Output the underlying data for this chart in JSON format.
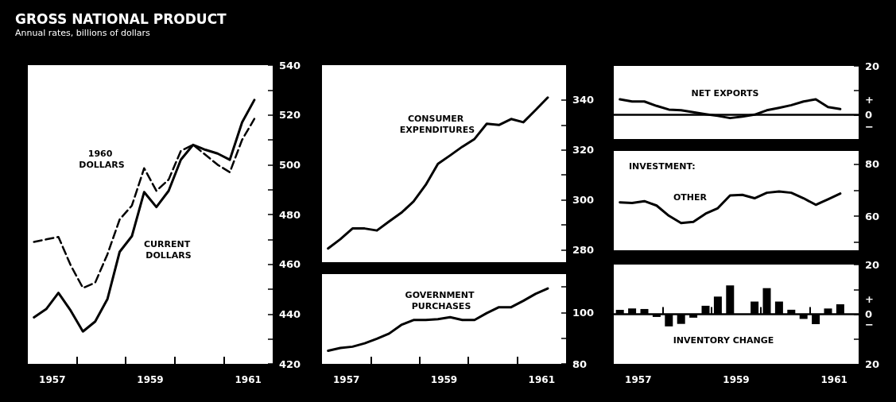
{
  "chart_data": [
    {
      "type": "line",
      "title": "GROSS NATIONAL PRODUCT",
      "subtitle": "Annual rates, billions of dollars",
      "x": [
        1957.125,
        1957.375,
        1957.625,
        1957.875,
        1958.125,
        1958.375,
        1958.625,
        1958.875,
        1959.125,
        1959.375,
        1959.625,
        1959.875,
        1960.125,
        1960.375,
        1960.625,
        1960.875,
        1961.125,
        1961.375,
        1961.625
      ],
      "xlim": [
        1957,
        1962
      ],
      "xticks": [
        {
          "value": 1957.5,
          "label": "1957"
        },
        {
          "value": 1958,
          "label": null
        },
        {
          "value": 1959,
          "label": null
        },
        {
          "value": 1959.5,
          "label": "1959"
        },
        {
          "value": 1960,
          "label": null
        },
        {
          "value": 1961,
          "label": null
        },
        {
          "value": 1961.5,
          "label": "1961"
        }
      ],
      "ylim": [
        420,
        540
      ],
      "yticks": [
        540,
        {
          "value": 530,
          "label": null
        },
        520,
        {
          "value": 510,
          "label": null
        },
        500,
        {
          "value": 490,
          "label": null
        },
        480,
        {
          "value": 470,
          "label": null
        },
        460,
        {
          "value": 450,
          "label": null
        },
        440,
        {
          "value": 430,
          "label": null
        },
        420
      ],
      "grid": false,
      "legend": false,
      "series": [
        {
          "name": "1960 DOLLARS",
          "color": "#000000",
          "line_style": "dashed",
          "values": [
            469,
            470,
            471,
            459.6,
            450.5,
            452.6,
            464,
            478,
            483.6,
            498.6,
            489.5,
            494,
            505.6,
            508,
            504,
            500,
            497,
            510,
            518.4
          ]
        },
        {
          "name": "CURRENT DOLLARS",
          "color": "#000000",
          "line_style": "solid",
          "values": [
            438.7,
            442,
            448.5,
            441.4,
            433,
            437,
            446,
            465,
            471.3,
            489,
            483,
            489.5,
            502,
            508,
            506,
            504.5,
            502,
            517,
            526
          ]
        }
      ]
    },
    {
      "type": "line",
      "title": "CONSUMER EXPENDITURES",
      "x": [
        1957.125,
        1957.375,
        1957.625,
        1957.875,
        1958.125,
        1958.375,
        1958.625,
        1958.875,
        1959.125,
        1959.375,
        1959.625,
        1959.875,
        1960.125,
        1960.375,
        1960.625,
        1960.875,
        1961.125,
        1961.375,
        1961.625
      ],
      "xlim": [
        1957,
        1962
      ],
      "ylim": [
        275,
        354
      ],
      "yticks": [
        340,
        {
          "value": 330,
          "label": null
        },
        320,
        {
          "value": 310,
          "label": null
        },
        300,
        {
          "value": 290,
          "label": null
        },
        280
      ],
      "tick_labels": "y",
      "grid": false,
      "legend": false,
      "series": [
        {
          "color": "#000000",
          "values": [
            280.5,
            284.2,
            288.5,
            288.5,
            287.7,
            291.3,
            294.8,
            299.3,
            306,
            314.4,
            317.8,
            321.3,
            324.4,
            330.5,
            330,
            332.4,
            331.1,
            336,
            341
          ]
        }
      ]
    },
    {
      "type": "line",
      "title": "GOVERNMENT PURCHASES",
      "x": [
        1957.125,
        1957.375,
        1957.625,
        1957.875,
        1958.125,
        1958.375,
        1958.625,
        1958.875,
        1959.125,
        1959.375,
        1959.625,
        1959.875,
        1960.125,
        1960.375,
        1960.625,
        1960.875,
        1961.125,
        1961.375,
        1961.625
      ],
      "xlim": [
        1957,
        1962
      ],
      "xticks": [
        {
          "value": 1957.5,
          "label": "1957"
        },
        {
          "value": 1958,
          "label": null
        },
        {
          "value": 1959,
          "label": null
        },
        {
          "value": 1959.5,
          "label": "1959"
        },
        {
          "value": 1960,
          "label": null
        },
        {
          "value": 1961,
          "label": null
        },
        {
          "value": 1961.5,
          "label": "1961"
        }
      ],
      "ylim": [
        80,
        115
      ],
      "yticks": [
        {
          "value": 110,
          "label": null
        },
        100,
        {
          "value": 90,
          "label": null
        },
        80
      ],
      "grid": false,
      "legend": false,
      "series": [
        {
          "color": "#000000",
          "values": [
            85.1,
            86.2,
            86.7,
            88,
            89.8,
            91.8,
            95.2,
            97.1,
            97.1,
            97.4,
            98.2,
            97.1,
            97.1,
            99.8,
            102.1,
            102.1,
            104.6,
            107.3,
            109.4
          ]
        }
      ]
    },
    {
      "type": "line",
      "title": "NET EXPORTS",
      "x": [
        1957.125,
        1957.375,
        1957.625,
        1957.875,
        1958.125,
        1958.375,
        1958.625,
        1958.875,
        1959.125,
        1959.375,
        1959.625,
        1959.875,
        1960.125,
        1960.375,
        1960.625,
        1960.875,
        1961.125,
        1961.375,
        1961.625
      ],
      "xlim": [
        1957,
        1962
      ],
      "ylim": [
        -10,
        20
      ],
      "yticks": [
        20,
        {
          "value": 10,
          "label": null
        },
        {
          "value": 6,
          "label": "+"
        },
        0,
        {
          "value": -5,
          "label": "−"
        }
      ],
      "tick_labels": "y",
      "grid": false,
      "legend": false,
      "ref_lines": [
        {
          "axis": "y",
          "value": 0,
          "color": "#000000"
        }
      ],
      "series": [
        {
          "color": "#000000",
          "values": [
            6.3,
            5.4,
            5.4,
            3.6,
            2.1,
            1.8,
            1,
            0.2,
            -0.5,
            -1.4,
            -0.8,
            0,
            1.8,
            2.8,
            3.9,
            5.4,
            6.3,
            3.1,
            2.3
          ]
        }
      ]
    },
    {
      "type": "line",
      "title": "INVESTMENT:",
      "x": [
        1957.125,
        1957.375,
        1957.625,
        1957.875,
        1958.125,
        1958.375,
        1958.625,
        1958.875,
        1959.125,
        1959.375,
        1959.625,
        1959.875,
        1960.125,
        1960.375,
        1960.625,
        1960.875,
        1961.125,
        1961.375,
        1961.625
      ],
      "xlim": [
        1957,
        1962
      ],
      "ylim": [
        47,
        85
      ],
      "yticks": [
        80,
        {
          "value": 70,
          "label": null
        },
        60,
        {
          "value": 50,
          "label": null
        }
      ],
      "tick_labels": "y",
      "grid": false,
      "legend": false,
      "series": [
        {
          "name": "OTHER",
          "color": "#000000",
          "values": [
            65.3,
            65.1,
            65.8,
            64.1,
            60.2,
            57.4,
            57.9,
            61,
            63.1,
            68,
            68.2,
            66.9,
            69,
            69.5,
            69,
            66.9,
            64.4,
            66.5,
            68.7
          ]
        }
      ]
    },
    {
      "type": "bar",
      "title": "INVENTORY CHANGE",
      "x": [
        1957.125,
        1957.375,
        1957.625,
        1957.875,
        1958.125,
        1958.375,
        1958.625,
        1958.875,
        1959.125,
        1959.375,
        1959.625,
        1959.875,
        1960.125,
        1960.375,
        1960.625,
        1960.875,
        1961.125,
        1961.375,
        1961.625
      ],
      "xlim": [
        1957,
        1962
      ],
      "xticks": [
        {
          "value": 1957.5,
          "label": "1957"
        },
        {
          "value": 1958,
          "label": null
        },
        {
          "value": 1959,
          "label": null
        },
        {
          "value": 1959.5,
          "label": "1959"
        },
        {
          "value": 1960,
          "label": null
        },
        {
          "value": 1961,
          "label": null
        },
        {
          "value": 1961.5,
          "label": "1961"
        }
      ],
      "ylim": [
        -20,
        20
      ],
      "yticks": [
        20,
        {
          "value": 10,
          "label": null
        },
        {
          "value": 6,
          "label": "+"
        },
        0,
        {
          "value": -4,
          "label": "−"
        },
        {
          "value": -10,
          "label": null
        },
        {
          "value": -20,
          "label": "20"
        }
      ],
      "grid": false,
      "legend": false,
      "ref_lines": [
        {
          "axis": "y",
          "value": 0,
          "color": "#000000"
        }
      ],
      "series": [
        {
          "color": "#000000",
          "values": [
            1.8,
            2.3,
            2.1,
            -1.1,
            -4.9,
            -3.9,
            -1.4,
            3.4,
            7.1,
            11.6,
            null,
            5.1,
            10.5,
            5.1,
            1.8,
            -1.9,
            -4,
            2.3,
            4
          ]
        }
      ]
    }
  ]
}
